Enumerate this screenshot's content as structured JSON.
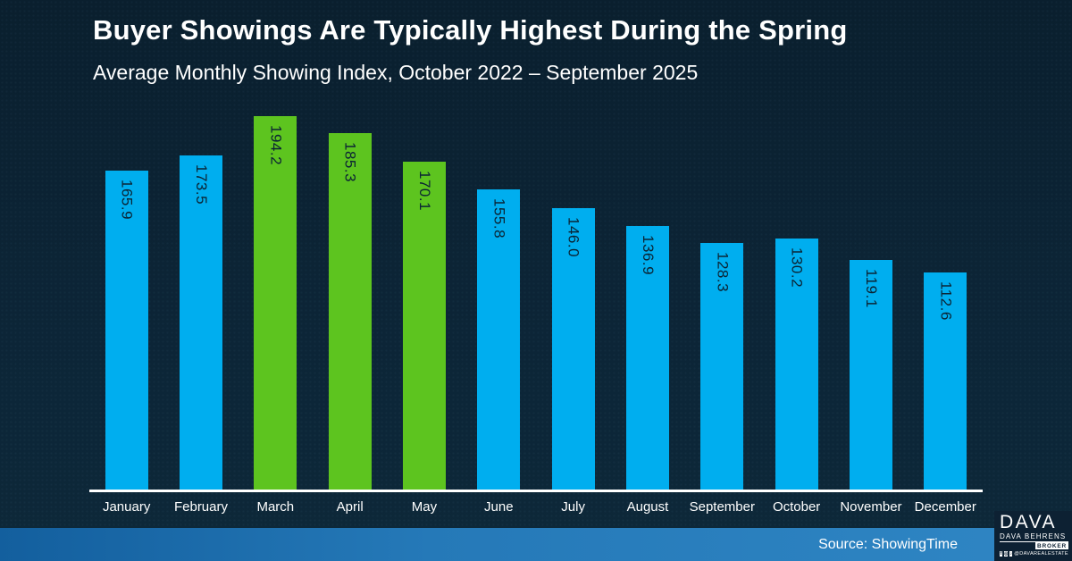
{
  "header": {
    "title": "Buyer Showings Are Typically Highest During the Spring",
    "subtitle": "Average Monthly Showing Index, October 2022 – September 2025"
  },
  "chart_data": {
    "type": "bar",
    "title": "Buyer Showings Are Typically Highest During the Spring",
    "subtitle": "Average Monthly Showing Index, October 2022 – September 2025",
    "categories": [
      "January",
      "February",
      "March",
      "April",
      "May",
      "June",
      "July",
      "August",
      "September",
      "October",
      "November",
      "December"
    ],
    "values": [
      165.9,
      173.5,
      194.2,
      185.3,
      170.1,
      155.8,
      146.0,
      136.9,
      128.3,
      130.2,
      119.1,
      112.6
    ],
    "value_labels": [
      "165.9",
      "173.5",
      "194.2",
      "185.3",
      "170.1",
      "155.8",
      "146.0",
      "136.9",
      "128.3",
      "130.2",
      "119.1",
      "112.6"
    ],
    "bar_color_names": [
      "blue",
      "blue",
      "green",
      "green",
      "green",
      "blue",
      "blue",
      "blue",
      "blue",
      "blue",
      "blue",
      "blue"
    ],
    "palette": {
      "blue": "#00AEEF",
      "green": "#5DC41F"
    },
    "highlighted_months": [
      "March",
      "April",
      "May"
    ],
    "value_label_color": "#0b2434",
    "xlabel": "",
    "ylabel": "",
    "ylim": [
      0,
      200
    ],
    "grid": false,
    "legend": false
  },
  "footer": {
    "source": "Source: ShowingTime"
  },
  "logo": {
    "brand": "DAVA",
    "name": "DAVA BEHRENS",
    "role": "BROKER",
    "handle": "@DAVAREALESTATE",
    "social_icons": [
      "facebook-icon",
      "instagram-icon",
      "tiktok-icon"
    ]
  }
}
